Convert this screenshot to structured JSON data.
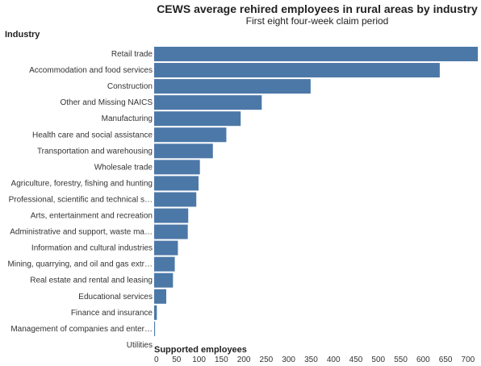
{
  "title": "CEWS average rehired employees in rural areas by industry",
  "subtitle": "First eight four-week claim period",
  "chart_data": {
    "type": "bar",
    "orientation": "horizontal",
    "title": "CEWS average rehired employees in rural areas by industry",
    "subtitle": "First eight four-week claim period",
    "ylabel": "Industry",
    "xlabel": "Supported employees",
    "xlim": [
      0,
      720
    ],
    "xticks": [
      0,
      50,
      100,
      150,
      200,
      250,
      300,
      350,
      400,
      450,
      500,
      550,
      600,
      650,
      700
    ],
    "grid": false,
    "bar_color": "#4c78a8",
    "categories": [
      "Retail trade",
      "Accommodation and food services",
      "Construction",
      "Other and Missing NAICS",
      "Manufacturing",
      "Health care and social assistance",
      "Transportation and warehousing",
      "Wholesale trade",
      "Agriculture, forestry, fishing and hunting",
      "Professional, scientific and technical s…",
      "Arts, entertainment and recreation",
      "Administrative and support, waste ma…",
      "Information and cultural industries",
      "Mining, quarrying, and oil and gas extr…",
      "Real estate and rental and leasing",
      "Educational services",
      "Finance and insurance",
      "Management of companies and enter…",
      "Utilities"
    ],
    "values": [
      722,
      637,
      349,
      240,
      193,
      161,
      131,
      102,
      99,
      94,
      76,
      75,
      53,
      46,
      42,
      27,
      6,
      2,
      0
    ]
  }
}
